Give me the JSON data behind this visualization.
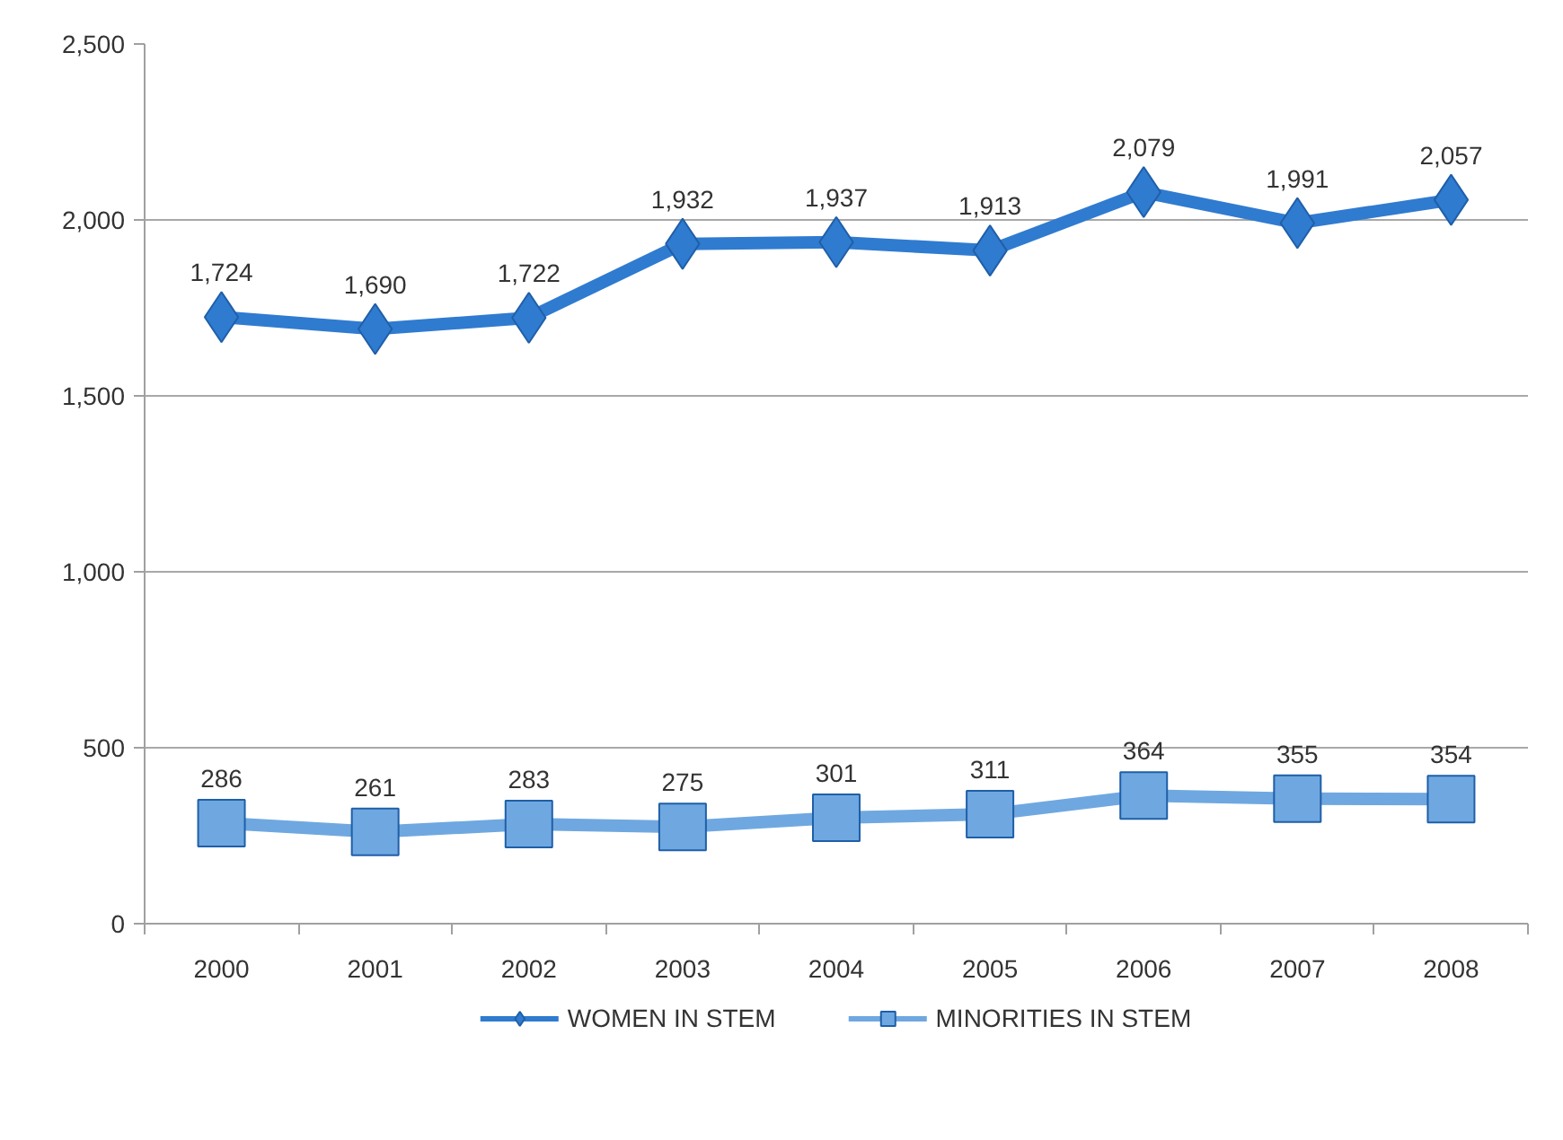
{
  "chart_data": {
    "type": "line",
    "categories": [
      "2000",
      "2001",
      "2002",
      "2003",
      "2004",
      "2005",
      "2006",
      "2007",
      "2008"
    ],
    "series": [
      {
        "name": "WOMEN IN STEM",
        "color": "#2f7bd0",
        "marker": "diamond",
        "values": [
          1724,
          1690,
          1722,
          1932,
          1937,
          1913,
          2079,
          1991,
          2057
        ],
        "value_labels": [
          "1,724",
          "1,690",
          "1,722",
          "1,932",
          "1,937",
          "1,913",
          "2,079",
          "1,991",
          "2,057"
        ]
      },
      {
        "name": "MINORITIES IN STEM",
        "color": "#6fa8e0",
        "marker": "square",
        "values": [
          286,
          261,
          283,
          275,
          301,
          311,
          364,
          355,
          354
        ]
      }
    ],
    "ylim": [
      0,
      2500
    ],
    "yticks": [
      0,
      500,
      {
        "value": 1000,
        "label": "1,000"
      },
      {
        "value": 1500,
        "label": "1,500"
      },
      {
        "value": 2000,
        "label": "2,000"
      },
      {
        "value": 2500,
        "label": "2,500"
      }
    ],
    "grid": "y",
    "legend": "bottom",
    "data_labels": true,
    "line_style": "solid"
  }
}
